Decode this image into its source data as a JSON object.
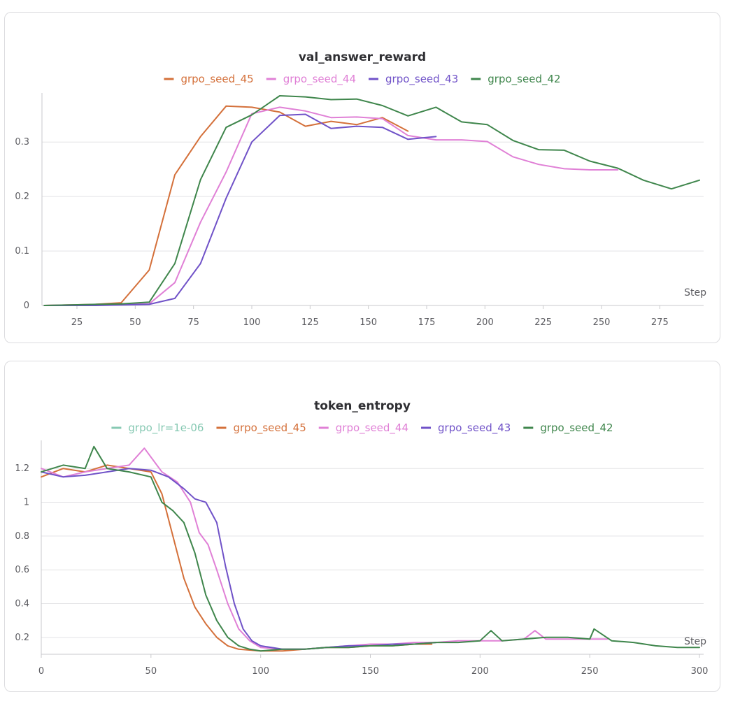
{
  "colors": {
    "grpo_seed_45": "#d4703a",
    "grpo_seed_44": "#e080d6",
    "grpo_seed_43": "#7052c8",
    "grpo_seed_42": "#3f864c",
    "grpo_lr=1e-06": "#87c9b3"
  },
  "chart_data": [
    {
      "type": "line",
      "title": "val_answer_reward",
      "xlabel": "Step",
      "ylabel": "",
      "xlim": [
        10,
        292
      ],
      "ylim": [
        0,
        0.385
      ],
      "x_ticks": [
        25,
        50,
        75,
        100,
        125,
        150,
        175,
        200,
        225,
        250,
        275
      ],
      "y_ticks": [
        0,
        0.1,
        0.2,
        0.3
      ],
      "legend": [
        "grpo_seed_45",
        "grpo_seed_44",
        "grpo_seed_43",
        "grpo_seed_42"
      ],
      "legend_placement": "top-center",
      "grid": true,
      "series": [
        {
          "name": "grpo_seed_45",
          "x": [
            11,
            22,
            33,
            44,
            56,
            67,
            78,
            89,
            100,
            112,
            123,
            134,
            145,
            156,
            167
          ],
          "y": [
            0.0,
            0.001,
            0.002,
            0.005,
            0.065,
            0.24,
            0.31,
            0.366,
            0.364,
            0.355,
            0.329,
            0.338,
            0.332,
            0.345,
            0.32
          ]
        },
        {
          "name": "grpo_seed_44",
          "x": [
            11,
            22,
            33,
            44,
            56,
            67,
            78,
            89,
            100,
            112,
            123,
            134,
            145,
            156,
            167,
            179,
            190,
            201,
            212,
            223,
            234,
            245,
            257
          ],
          "y": [
            0.0,
            0.001,
            0.001,
            0.002,
            0.003,
            0.042,
            0.153,
            0.245,
            0.352,
            0.364,
            0.357,
            0.345,
            0.346,
            0.343,
            0.312,
            0.304,
            0.304,
            0.301,
            0.273,
            0.259,
            0.251,
            0.249,
            0.249
          ]
        },
        {
          "name": "grpo_seed_43",
          "x": [
            11,
            22,
            33,
            44,
            56,
            67,
            78,
            89,
            100,
            112,
            123,
            134,
            145,
            156,
            167,
            179
          ],
          "y": [
            0.0,
            0.0,
            0.0,
            0.001,
            0.002,
            0.013,
            0.077,
            0.197,
            0.3,
            0.349,
            0.351,
            0.325,
            0.329,
            0.327,
            0.305,
            0.31
          ]
        },
        {
          "name": "grpo_seed_42",
          "x": [
            11,
            22,
            33,
            44,
            56,
            67,
            78,
            89,
            100,
            112,
            123,
            134,
            145,
            156,
            167,
            179,
            190,
            201,
            212,
            223,
            234,
            245,
            257,
            268,
            280,
            292
          ],
          "y": [
            0.0,
            0.001,
            0.002,
            0.003,
            0.006,
            0.077,
            0.231,
            0.327,
            0.35,
            0.385,
            0.383,
            0.378,
            0.379,
            0.367,
            0.348,
            0.364,
            0.337,
            0.332,
            0.303,
            0.286,
            0.285,
            0.265,
            0.252,
            0.23,
            0.214,
            0.23
          ]
        }
      ]
    },
    {
      "type": "line",
      "title": "token_entropy",
      "xlabel": "Step",
      "ylabel": "",
      "xlim": [
        0,
        300
      ],
      "ylim": [
        0.1,
        1.35
      ],
      "x_ticks": [
        0,
        50,
        100,
        150,
        200,
        250,
        300
      ],
      "y_ticks": [
        0.2,
        0.4,
        0.6,
        0.8,
        1,
        1.2
      ],
      "legend": [
        "grpo_lr=1e-06",
        "grpo_seed_45",
        "grpo_seed_44",
        "grpo_seed_43",
        "grpo_seed_42"
      ],
      "legend_placement": "top-center",
      "grid": true,
      "series": [
        {
          "name": "grpo_lr=1e-06",
          "x": [],
          "y": []
        },
        {
          "name": "grpo_seed_45",
          "x": [
            0,
            10,
            20,
            30,
            40,
            50,
            55,
            60,
            65,
            70,
            75,
            80,
            85,
            90,
            100,
            110,
            120,
            130,
            140,
            150,
            160,
            170,
            178
          ],
          "y": [
            1.15,
            1.2,
            1.18,
            1.22,
            1.2,
            1.18,
            1.05,
            0.8,
            0.55,
            0.38,
            0.28,
            0.2,
            0.15,
            0.13,
            0.12,
            0.12,
            0.13,
            0.14,
            0.14,
            0.15,
            0.15,
            0.16,
            0.16
          ]
        },
        {
          "name": "grpo_seed_44",
          "x": [
            0,
            10,
            20,
            30,
            40,
            47,
            55,
            62,
            68,
            72,
            76,
            80,
            85,
            90,
            95,
            100,
            110,
            120,
            130,
            140,
            150,
            160,
            170,
            180,
            190,
            200,
            210,
            220,
            225,
            230,
            240,
            250,
            258
          ],
          "y": [
            1.2,
            1.15,
            1.18,
            1.2,
            1.22,
            1.32,
            1.18,
            1.12,
            1.0,
            0.82,
            0.75,
            0.6,
            0.4,
            0.25,
            0.18,
            0.14,
            0.13,
            0.13,
            0.14,
            0.15,
            0.16,
            0.16,
            0.17,
            0.17,
            0.18,
            0.18,
            0.18,
            0.19,
            0.24,
            0.19,
            0.19,
            0.19,
            0.19
          ]
        },
        {
          "name": "grpo_seed_43",
          "x": [
            0,
            10,
            20,
            30,
            40,
            50,
            58,
            65,
            70,
            75,
            80,
            84,
            88,
            92,
            96,
            100,
            110,
            120,
            130,
            140,
            150,
            160,
            170,
            180
          ],
          "y": [
            1.18,
            1.15,
            1.16,
            1.18,
            1.2,
            1.19,
            1.15,
            1.08,
            1.02,
            1.0,
            0.88,
            0.62,
            0.4,
            0.25,
            0.18,
            0.15,
            0.13,
            0.13,
            0.14,
            0.15,
            0.15,
            0.16,
            0.16,
            0.17
          ]
        },
        {
          "name": "grpo_seed_42",
          "x": [
            0,
            10,
            20,
            24,
            30,
            40,
            50,
            55,
            60,
            65,
            70,
            75,
            80,
            85,
            90,
            95,
            100,
            110,
            120,
            130,
            140,
            150,
            160,
            170,
            180,
            190,
            200,
            205,
            210,
            220,
            230,
            240,
            250,
            252,
            260,
            270,
            280,
            290,
            300
          ],
          "y": [
            1.18,
            1.22,
            1.2,
            1.33,
            1.2,
            1.18,
            1.15,
            1.0,
            0.95,
            0.88,
            0.7,
            0.45,
            0.3,
            0.2,
            0.15,
            0.13,
            0.12,
            0.13,
            0.13,
            0.14,
            0.14,
            0.15,
            0.15,
            0.16,
            0.17,
            0.17,
            0.18,
            0.24,
            0.18,
            0.19,
            0.2,
            0.2,
            0.19,
            0.25,
            0.18,
            0.17,
            0.15,
            0.14,
            0.14
          ]
        }
      ]
    }
  ]
}
